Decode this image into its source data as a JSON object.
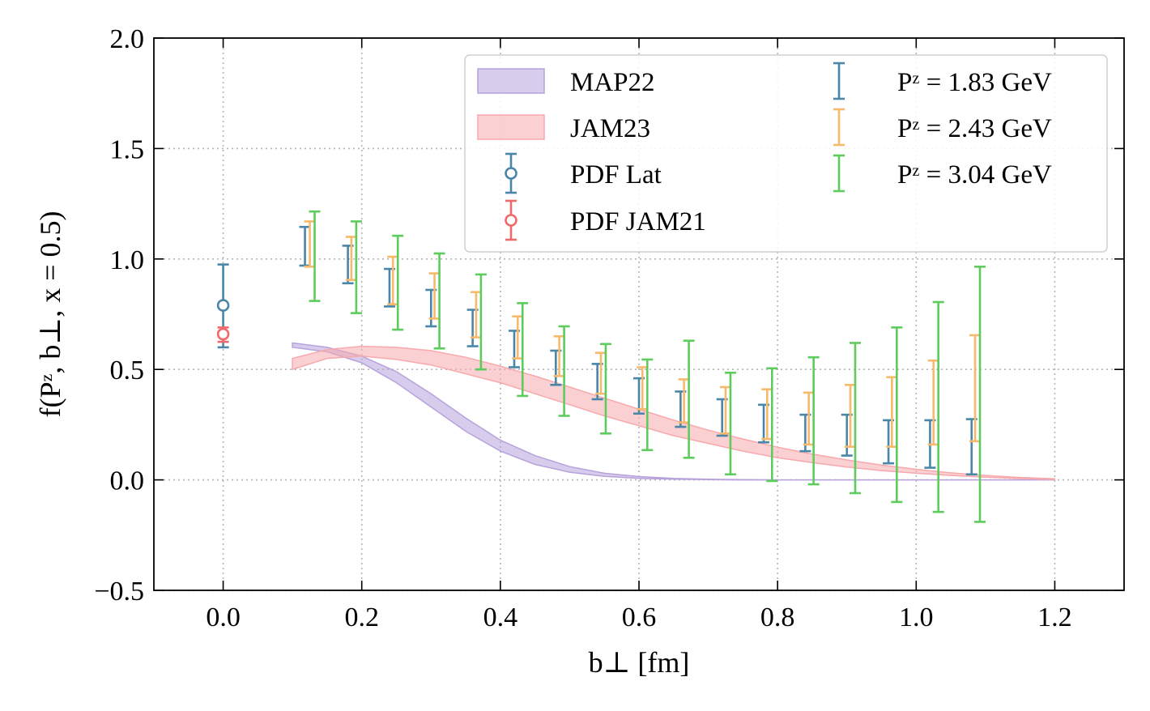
{
  "chart_data": {
    "type": "errorbar",
    "title": "",
    "xlabel": "b⊥ [fm]",
    "ylabel": "f(Pᶻ, b⊥, x = 0.5)",
    "xlim": [
      -0.1,
      1.3
    ],
    "ylim": [
      -0.5,
      2.0
    ],
    "x_ticks": [
      0.0,
      0.2,
      0.4,
      0.6,
      0.8,
      1.0,
      1.2
    ],
    "x_tick_labels": [
      "0.0",
      "0.2",
      "0.4",
      "0.6",
      "0.8",
      "1.0",
      "1.2"
    ],
    "y_ticks": [
      -0.5,
      0.0,
      0.5,
      1.0,
      1.5,
      2.0
    ],
    "y_tick_labels": [
      "−0.5",
      "0.0",
      "0.5",
      "1.0",
      "1.5",
      "2.0"
    ],
    "grid": true,
    "legend_position": "top-right",
    "bands": [
      {
        "name": "MAP22",
        "color": "#b7a2db",
        "x": [
          0.1,
          0.15,
          0.2,
          0.25,
          0.3,
          0.35,
          0.4,
          0.45,
          0.5,
          0.55,
          0.6,
          0.65,
          0.7,
          0.75,
          0.8,
          0.9,
          1.0,
          1.1,
          1.2
        ],
        "lower": [
          0.6,
          0.58,
          0.53,
          0.44,
          0.33,
          0.22,
          0.13,
          0.07,
          0.035,
          0.016,
          0.007,
          0.003,
          0.001,
          0.0,
          0.0,
          0.0,
          0.0,
          0.0,
          0.0
        ],
        "upper": [
          0.62,
          0.6,
          0.56,
          0.49,
          0.39,
          0.28,
          0.18,
          0.11,
          0.06,
          0.03,
          0.015,
          0.007,
          0.003,
          0.001,
          0.0,
          0.0,
          0.0,
          0.0,
          0.0
        ]
      },
      {
        "name": "JAM23",
        "color": "#f7a9ad",
        "x": [
          0.1,
          0.15,
          0.2,
          0.25,
          0.3,
          0.35,
          0.4,
          0.45,
          0.5,
          0.55,
          0.6,
          0.65,
          0.7,
          0.75,
          0.8,
          0.85,
          0.9,
          0.95,
          1.0,
          1.05,
          1.1,
          1.15,
          1.2
        ],
        "lower": [
          0.5,
          0.55,
          0.56,
          0.545,
          0.52,
          0.48,
          0.44,
          0.39,
          0.34,
          0.29,
          0.245,
          0.2,
          0.165,
          0.13,
          0.1,
          0.078,
          0.058,
          0.042,
          0.03,
          0.02,
          0.012,
          0.006,
          0.002
        ],
        "upper": [
          0.55,
          0.59,
          0.605,
          0.6,
          0.585,
          0.555,
          0.515,
          0.47,
          0.42,
          0.37,
          0.32,
          0.27,
          0.225,
          0.185,
          0.148,
          0.117,
          0.09,
          0.067,
          0.048,
          0.032,
          0.02,
          0.011,
          0.005
        ]
      }
    ],
    "series": [
      {
        "name": "PDF Lat",
        "color": "#4a86a8",
        "marker": "circle-open",
        "points": [
          {
            "x": 0.0,
            "y": 0.79,
            "lo": 0.6,
            "hi": 0.975
          }
        ]
      },
      {
        "name": "PDF JAM21",
        "color": "#f06a6c",
        "marker": "circle-open",
        "points": [
          {
            "x": 0.0,
            "y": 0.66,
            "lo": 0.625,
            "hi": 0.69
          }
        ]
      },
      {
        "name": "Pᶻ = 1.83 GeV",
        "color": "#4a86a8",
        "marker": "none",
        "points": [
          {
            "x": 0.118,
            "lo": 0.97,
            "hi": 1.145
          },
          {
            "x": 0.18,
            "lo": 0.89,
            "hi": 1.06
          },
          {
            "x": 0.24,
            "lo": 0.785,
            "hi": 0.955
          },
          {
            "x": 0.3,
            "lo": 0.695,
            "hi": 0.86
          },
          {
            "x": 0.36,
            "lo": 0.605,
            "hi": 0.77
          },
          {
            "x": 0.42,
            "lo": 0.51,
            "hi": 0.675
          },
          {
            "x": 0.48,
            "lo": 0.43,
            "hi": 0.585
          },
          {
            "x": 0.54,
            "lo": 0.365,
            "hi": 0.525
          },
          {
            "x": 0.6,
            "lo": 0.3,
            "hi": 0.46
          },
          {
            "x": 0.66,
            "lo": 0.24,
            "hi": 0.4
          },
          {
            "x": 0.72,
            "lo": 0.2,
            "hi": 0.365
          },
          {
            "x": 0.78,
            "lo": 0.17,
            "hi": 0.34
          },
          {
            "x": 0.84,
            "lo": 0.13,
            "hi": 0.295
          },
          {
            "x": 0.9,
            "lo": 0.11,
            "hi": 0.295
          },
          {
            "x": 0.96,
            "lo": 0.075,
            "hi": 0.27
          },
          {
            "x": 1.02,
            "lo": 0.055,
            "hi": 0.27
          },
          {
            "x": 1.08,
            "lo": 0.025,
            "hi": 0.275
          }
        ]
      },
      {
        "name": "Pᶻ = 2.43 GeV",
        "color": "#f7b96b",
        "marker": "none",
        "points": [
          {
            "x": 0.125,
            "lo": 0.965,
            "hi": 1.17
          },
          {
            "x": 0.185,
            "lo": 0.905,
            "hi": 1.1
          },
          {
            "x": 0.245,
            "lo": 0.795,
            "hi": 1.01
          },
          {
            "x": 0.305,
            "lo": 0.73,
            "hi": 0.935
          },
          {
            "x": 0.365,
            "lo": 0.645,
            "hi": 0.85
          },
          {
            "x": 0.425,
            "lo": 0.55,
            "hi": 0.74
          },
          {
            "x": 0.485,
            "lo": 0.47,
            "hi": 0.65
          },
          {
            "x": 0.545,
            "lo": 0.39,
            "hi": 0.575
          },
          {
            "x": 0.605,
            "lo": 0.32,
            "hi": 0.51
          },
          {
            "x": 0.665,
            "lo": 0.26,
            "hi": 0.455
          },
          {
            "x": 0.725,
            "lo": 0.21,
            "hi": 0.42
          },
          {
            "x": 0.785,
            "lo": 0.185,
            "hi": 0.41
          },
          {
            "x": 0.845,
            "lo": 0.16,
            "hi": 0.395
          },
          {
            "x": 0.905,
            "lo": 0.15,
            "hi": 0.43
          },
          {
            "x": 0.965,
            "lo": 0.15,
            "hi": 0.465
          },
          {
            "x": 1.025,
            "lo": 0.16,
            "hi": 0.54
          },
          {
            "x": 1.085,
            "lo": 0.175,
            "hi": 0.655
          }
        ]
      },
      {
        "name": "Pᶻ = 3.04 GeV",
        "color": "#5dcc5d",
        "marker": "none",
        "points": [
          {
            "x": 0.132,
            "lo": 0.81,
            "hi": 1.215
          },
          {
            "x": 0.192,
            "lo": 0.755,
            "hi": 1.17
          },
          {
            "x": 0.252,
            "lo": 0.68,
            "hi": 1.105
          },
          {
            "x": 0.312,
            "lo": 0.595,
            "hi": 1.025
          },
          {
            "x": 0.372,
            "lo": 0.5,
            "hi": 0.93
          },
          {
            "x": 0.432,
            "lo": 0.38,
            "hi": 0.8
          },
          {
            "x": 0.492,
            "lo": 0.29,
            "hi": 0.695
          },
          {
            "x": 0.552,
            "lo": 0.21,
            "hi": 0.615
          },
          {
            "x": 0.612,
            "lo": 0.135,
            "hi": 0.545
          },
          {
            "x": 0.672,
            "lo": 0.1,
            "hi": 0.63
          },
          {
            "x": 0.732,
            "lo": 0.025,
            "hi": 0.485
          },
          {
            "x": 0.792,
            "lo": -0.005,
            "hi": 0.505
          },
          {
            "x": 0.852,
            "lo": -0.02,
            "hi": 0.555
          },
          {
            "x": 0.912,
            "lo": -0.06,
            "hi": 0.62
          },
          {
            "x": 0.972,
            "lo": -0.1,
            "hi": 0.69
          },
          {
            "x": 1.032,
            "lo": -0.145,
            "hi": 0.805
          },
          {
            "x": 1.092,
            "lo": -0.19,
            "hi": 0.965
          }
        ]
      }
    ],
    "legend": {
      "left": [
        "MAP22",
        "JAM23",
        "PDF Lat",
        "PDF JAM21"
      ],
      "right": [
        "Pᶻ = 1.83 GeV",
        "Pᶻ = 2.43 GeV",
        "Pᶻ = 3.04 GeV"
      ]
    }
  }
}
